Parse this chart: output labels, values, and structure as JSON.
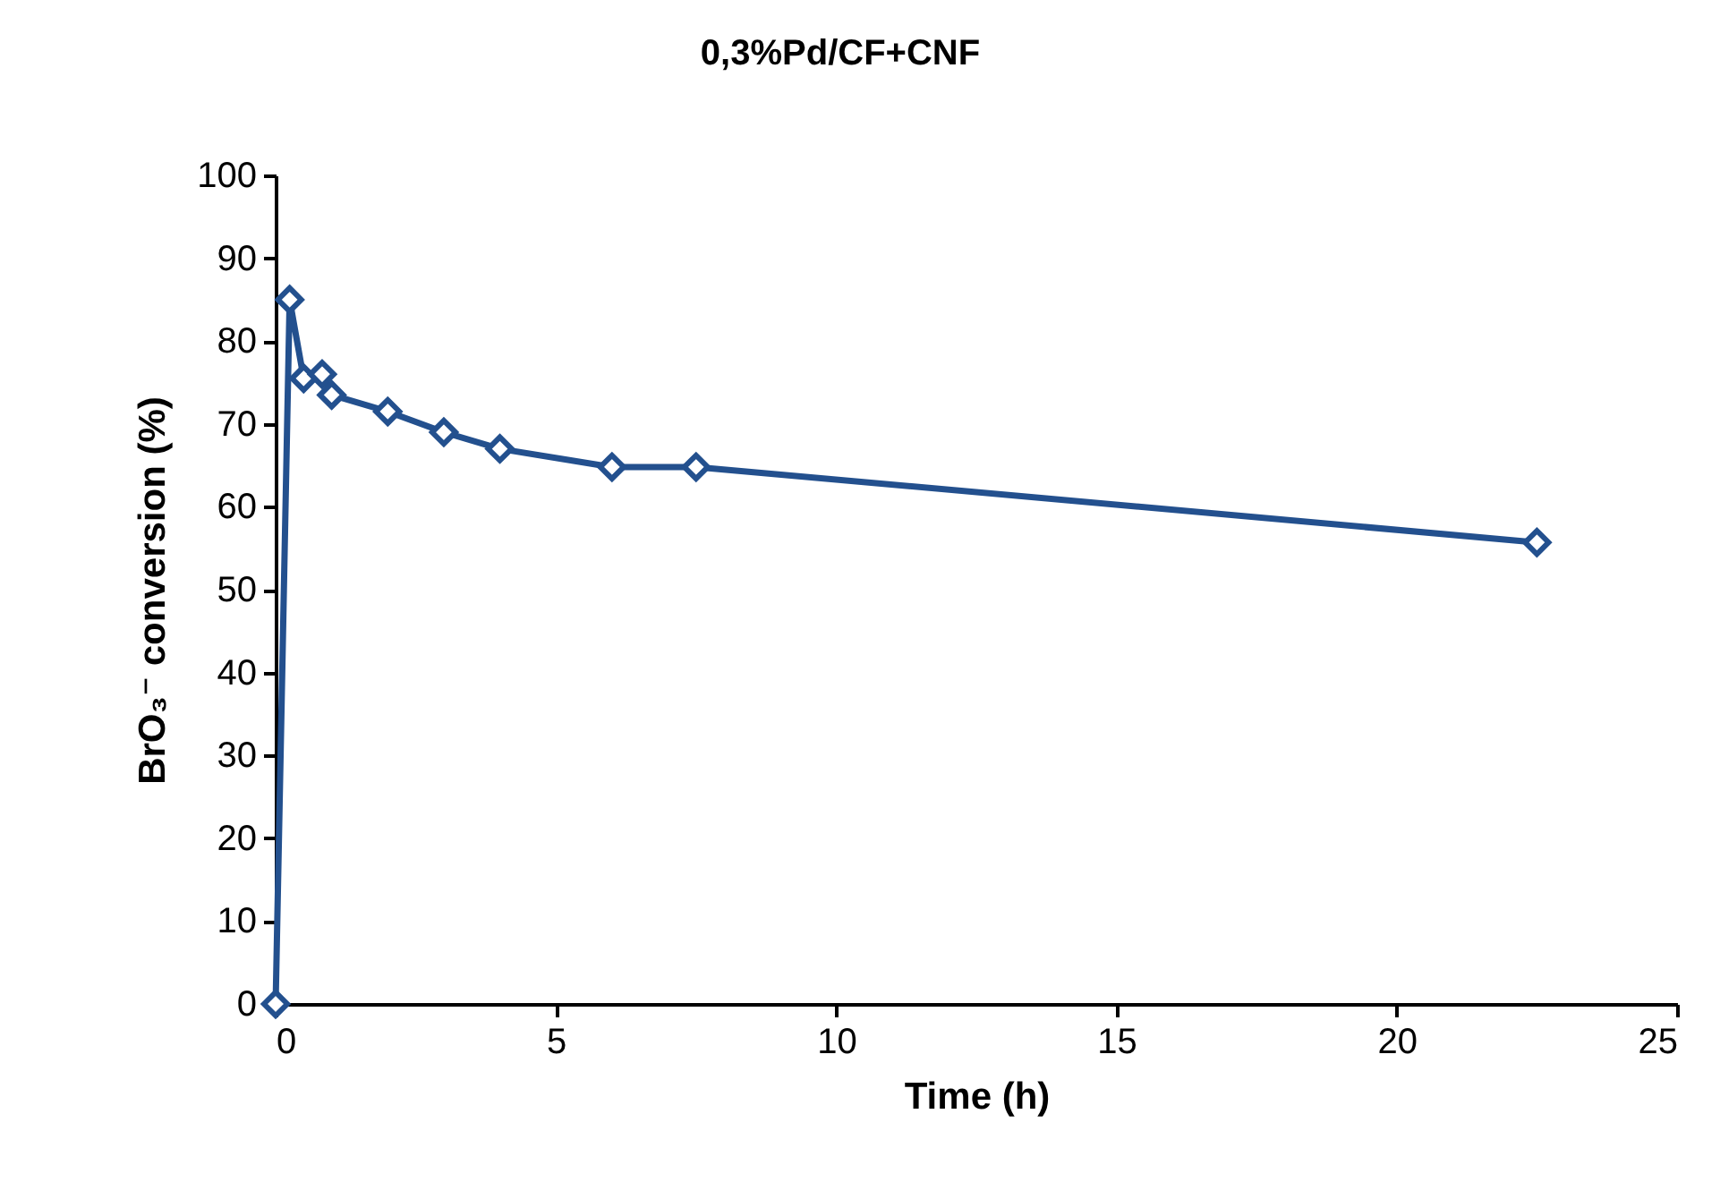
{
  "chart_data": {
    "type": "line",
    "title": "0,3%Pd/CF+CNF",
    "xlabel": "Time (h)",
    "ylabel": "BrO₃⁻ conversion (%)",
    "x": [
      0,
      0.25,
      0.5,
      0.83,
      1,
      2,
      3,
      4,
      6,
      7.5,
      22.5
    ],
    "series": [
      {
        "color": "#23508e",
        "values": [
          0,
          85,
          75.5,
          76,
          73.5,
          71.5,
          69,
          67,
          64.8,
          64.8,
          55.7
        ]
      }
    ],
    "xlim": [
      0,
      25
    ],
    "xticks": [
      0,
      5,
      10,
      15,
      20,
      25
    ],
    "ylim": [
      0,
      100
    ],
    "yticks": [
      0,
      10,
      20,
      30,
      40,
      50,
      60,
      70,
      80,
      90,
      100
    ],
    "grid": false,
    "marker": "diamond",
    "line_style": "solid"
  }
}
